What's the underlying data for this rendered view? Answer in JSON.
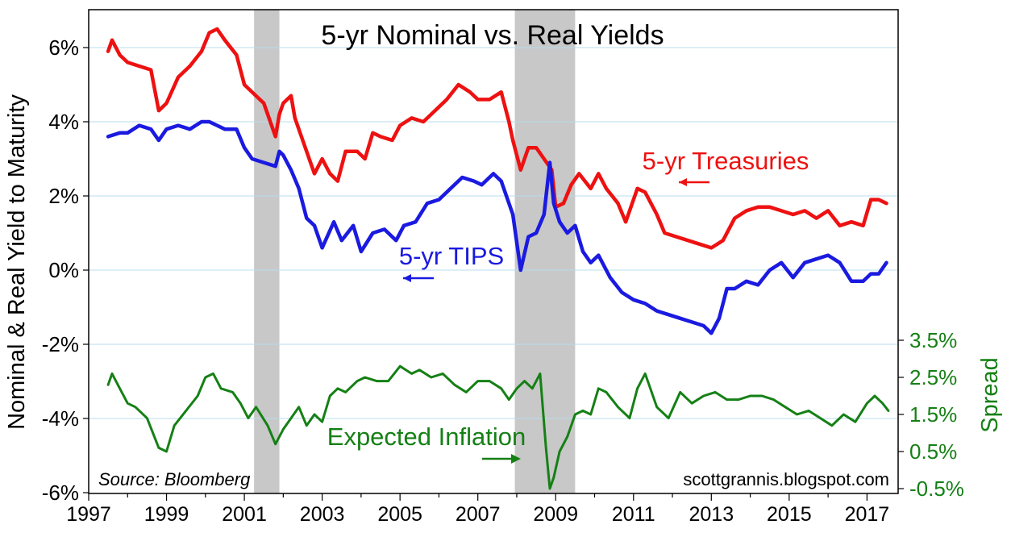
{
  "chart_data": {
    "type": "line",
    "title": "5-yr Nominal vs. Real Yields",
    "ylabel_left": "Nominal & Real Yield to Maturity",
    "ylabel_right": "Spread",
    "source": "Source: Bloomberg",
    "credit": "scottgrannis.blogspot.com",
    "x_ticks": [
      "1997",
      "1999",
      "2001",
      "2003",
      "2005",
      "2007",
      "2009",
      "2011",
      "2013",
      "2015",
      "2017"
    ],
    "y_left_ticks": [
      "6%",
      "4%",
      "2%",
      "0%",
      "-2%",
      "-4%",
      "-6%"
    ],
    "y_left_values": [
      6,
      4,
      2,
      0,
      -2,
      -4,
      -6
    ],
    "y_right_ticks": [
      "3.5%",
      "2.5%",
      "1.5%",
      "0.5%",
      "-0.5%"
    ],
    "y_right_values": [
      3.5,
      2.5,
      1.5,
      0.5,
      -0.5
    ],
    "xlim": [
      1997,
      2017.8
    ],
    "ylim_left": [
      -6,
      7
    ],
    "ylim_right": [
      -0.5,
      3.5
    ],
    "grid": true,
    "recessions": [
      [
        2001.25,
        2001.9
      ],
      [
        2007.95,
        2009.5
      ]
    ],
    "colors": {
      "nominal": "#ee1111",
      "real": "#1a1ae0",
      "spread": "#158015",
      "recession": "#c8c8c8",
      "grid": "#b8dcec"
    },
    "annotations": [
      {
        "text": "5-yr Treasuries",
        "series": "nominal",
        "arrow": "left"
      },
      {
        "text": "5-yr TIPS",
        "series": "real",
        "arrow": "left"
      },
      {
        "text": "Expected Inflation",
        "series": "spread",
        "arrow": "right"
      }
    ],
    "series": [
      {
        "name": "5-yr Treasuries",
        "axis": "left",
        "x": [
          1997.5,
          1997.6,
          1997.8,
          1998.0,
          1998.3,
          1998.6,
          1998.8,
          1999.0,
          1999.3,
          1999.6,
          1999.9,
          2000.1,
          2000.3,
          2000.5,
          2000.8,
          2001.0,
          2001.2,
          2001.5,
          2001.8,
          2001.9,
          2002.0,
          2002.2,
          2002.3,
          2002.6,
          2002.8,
          2003.0,
          2003.2,
          2003.4,
          2003.6,
          2003.9,
          2004.1,
          2004.3,
          2004.5,
          2004.8,
          2005.0,
          2005.3,
          2005.6,
          2005.9,
          2006.2,
          2006.5,
          2006.8,
          2007.0,
          2007.3,
          2007.6,
          2007.8,
          2007.9,
          2008.1,
          2008.3,
          2008.5,
          2008.7,
          2008.9,
          2009.0,
          2009.2,
          2009.4,
          2009.6,
          2009.9,
          2010.1,
          2010.3,
          2010.6,
          2010.8,
          2011.1,
          2011.3,
          2011.6,
          2011.8,
          2012.1,
          2012.4,
          2012.7,
          2013.0,
          2013.3,
          2013.6,
          2013.9,
          2014.2,
          2014.5,
          2014.8,
          2015.1,
          2015.4,
          2015.7,
          2016.0,
          2016.3,
          2016.6,
          2016.9,
          2017.1,
          2017.3,
          2017.5
        ],
        "values": [
          5.9,
          6.2,
          5.8,
          5.6,
          5.5,
          5.4,
          4.3,
          4.5,
          5.2,
          5.5,
          5.9,
          6.4,
          6.5,
          6.2,
          5.8,
          5.0,
          4.8,
          4.5,
          3.6,
          4.2,
          4.5,
          4.7,
          4.1,
          3.2,
          2.6,
          3.0,
          2.6,
          2.4,
          3.2,
          3.2,
          3.0,
          3.7,
          3.6,
          3.5,
          3.9,
          4.1,
          4.0,
          4.3,
          4.6,
          5.0,
          4.8,
          4.6,
          4.6,
          4.8,
          4.0,
          3.5,
          2.7,
          3.3,
          3.3,
          3.0,
          2.7,
          1.7,
          1.8,
          2.3,
          2.6,
          2.2,
          2.6,
          2.2,
          1.8,
          1.3,
          2.2,
          2.1,
          1.5,
          1.0,
          0.9,
          0.8,
          0.7,
          0.6,
          0.8,
          1.4,
          1.6,
          1.7,
          1.7,
          1.6,
          1.5,
          1.6,
          1.4,
          1.6,
          1.2,
          1.3,
          1.2,
          1.9,
          1.9,
          1.8
        ]
      },
      {
        "name": "5-yr TIPS",
        "axis": "left",
        "x": [
          1997.5,
          1997.8,
          1998.0,
          1998.3,
          1998.6,
          1998.8,
          1999.0,
          1999.3,
          1999.6,
          1999.9,
          2000.1,
          2000.3,
          2000.5,
          2000.8,
          2001.0,
          2001.2,
          2001.5,
          2001.8,
          2001.9,
          2002.0,
          2002.2,
          2002.4,
          2002.6,
          2002.8,
          2003.0,
          2003.3,
          2003.5,
          2003.8,
          2004.0,
          2004.3,
          2004.6,
          2004.9,
          2005.1,
          2005.4,
          2005.7,
          2006.0,
          2006.3,
          2006.6,
          2006.9,
          2007.1,
          2007.4,
          2007.6,
          2007.9,
          2008.1,
          2008.3,
          2008.5,
          2008.7,
          2008.85,
          2008.95,
          2009.1,
          2009.3,
          2009.5,
          2009.7,
          2009.9,
          2010.1,
          2010.4,
          2010.7,
          2011.0,
          2011.3,
          2011.6,
          2011.9,
          2012.2,
          2012.5,
          2012.8,
          2013.0,
          2013.2,
          2013.4,
          2013.6,
          2013.9,
          2014.2,
          2014.5,
          2014.8,
          2015.1,
          2015.4,
          2015.7,
          2016.0,
          2016.3,
          2016.6,
          2016.9,
          2017.1,
          2017.3,
          2017.5
        ],
        "values": [
          3.6,
          3.7,
          3.7,
          3.9,
          3.8,
          3.5,
          3.8,
          3.9,
          3.8,
          4.0,
          4.0,
          3.9,
          3.8,
          3.8,
          3.3,
          3.0,
          2.9,
          2.8,
          3.2,
          3.1,
          2.7,
          2.2,
          1.4,
          1.2,
          0.6,
          1.3,
          0.8,
          1.2,
          0.5,
          1.0,
          1.1,
          0.8,
          1.2,
          1.3,
          1.8,
          1.9,
          2.2,
          2.5,
          2.4,
          2.3,
          2.6,
          2.4,
          1.5,
          0.0,
          0.9,
          1.0,
          1.5,
          2.9,
          1.8,
          1.3,
          1.0,
          1.2,
          0.5,
          0.2,
          0.4,
          -0.2,
          -0.6,
          -0.8,
          -0.9,
          -1.1,
          -1.2,
          -1.3,
          -1.4,
          -1.5,
          -1.7,
          -1.3,
          -0.5,
          -0.5,
          -0.3,
          -0.4,
          0.0,
          0.2,
          -0.2,
          0.2,
          0.3,
          0.4,
          0.2,
          -0.3,
          -0.3,
          -0.1,
          -0.1,
          0.2
        ]
      },
      {
        "name": "Expected Inflation",
        "axis": "right",
        "x": [
          1997.5,
          1997.6,
          1997.8,
          1998.0,
          1998.2,
          1998.5,
          1998.8,
          1999.0,
          1999.2,
          1999.5,
          1999.8,
          2000.0,
          2000.2,
          2000.4,
          2000.7,
          2000.9,
          2001.1,
          2001.3,
          2001.6,
          2001.8,
          2002.0,
          2002.2,
          2002.4,
          2002.6,
          2002.8,
          2003.0,
          2003.2,
          2003.4,
          2003.6,
          2003.9,
          2004.1,
          2004.4,
          2004.7,
          2005.0,
          2005.3,
          2005.5,
          2005.8,
          2006.1,
          2006.4,
          2006.7,
          2007.0,
          2007.3,
          2007.6,
          2007.8,
          2008.0,
          2008.2,
          2008.4,
          2008.6,
          2008.75,
          2008.85,
          2008.95,
          2009.1,
          2009.3,
          2009.5,
          2009.7,
          2009.9,
          2010.1,
          2010.3,
          2010.6,
          2010.9,
          2011.1,
          2011.3,
          2011.6,
          2011.9,
          2012.2,
          2012.5,
          2012.8,
          2013.1,
          2013.4,
          2013.7,
          2014.0,
          2014.3,
          2014.6,
          2014.9,
          2015.2,
          2015.5,
          2015.8,
          2016.1,
          2016.4,
          2016.7,
          2017.0,
          2017.2,
          2017.4,
          2017.55
        ],
        "values": [
          2.3,
          2.6,
          2.2,
          1.8,
          1.7,
          1.4,
          0.6,
          0.5,
          1.2,
          1.6,
          2.0,
          2.5,
          2.6,
          2.2,
          2.1,
          1.8,
          1.4,
          1.7,
          1.2,
          0.7,
          1.1,
          1.4,
          1.7,
          1.2,
          1.5,
          1.3,
          2.0,
          2.2,
          2.1,
          2.4,
          2.5,
          2.4,
          2.4,
          2.8,
          2.6,
          2.7,
          2.5,
          2.6,
          2.3,
          2.1,
          2.4,
          2.4,
          2.2,
          1.9,
          2.2,
          2.4,
          2.2,
          2.6,
          0.6,
          -0.5,
          -0.2,
          0.5,
          0.9,
          1.5,
          1.6,
          1.5,
          2.2,
          2.1,
          1.7,
          1.4,
          2.2,
          2.6,
          1.7,
          1.4,
          2.1,
          1.8,
          2.0,
          2.1,
          1.9,
          1.9,
          2.0,
          2.0,
          1.9,
          1.7,
          1.5,
          1.6,
          1.4,
          1.2,
          1.5,
          1.3,
          1.8,
          2.0,
          1.8,
          1.6
        ]
      }
    ]
  }
}
